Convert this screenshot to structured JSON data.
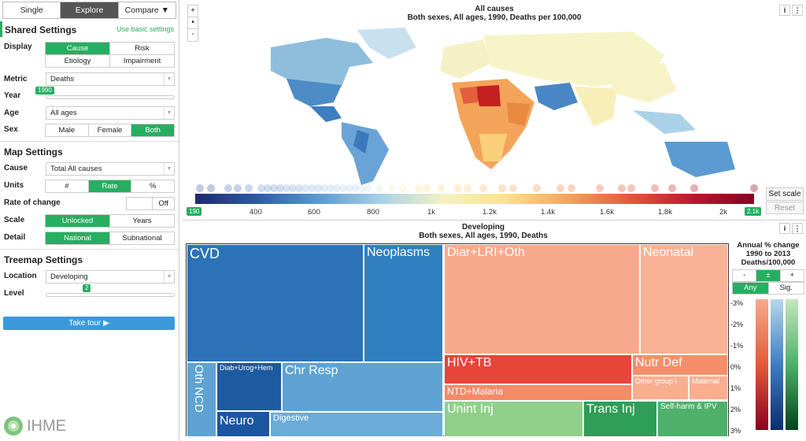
{
  "nav": {
    "single": "Single",
    "explore": "Explore",
    "compare": "Compare ▼"
  },
  "shared": {
    "title": "Shared Settings",
    "basic_link": "Use basic settings",
    "display_label": "Display",
    "display_opts": [
      "Cause",
      "Risk",
      "Etiology",
      "Impairment"
    ],
    "metric_label": "Metric",
    "metric_value": "Deaths",
    "year_label": "Year",
    "year_value": "1990",
    "age_label": "Age",
    "age_value": "All ages",
    "sex_label": "Sex",
    "sex_opts": [
      "Male",
      "Female",
      "Both"
    ]
  },
  "map_settings": {
    "title": "Map Settings",
    "cause_label": "Cause",
    "cause_value": "Total All causes",
    "units_label": "Units",
    "units_opts": [
      "#",
      "Rate",
      "%"
    ],
    "roc_label": "Rate of change",
    "roc_value": "Off",
    "scale_label": "Scale",
    "scale_opts": [
      "Unlocked",
      "Years"
    ],
    "detail_label": "Detail",
    "detail_opts": [
      "National",
      "Subnational"
    ]
  },
  "treemap_settings": {
    "title": "Treemap Settings",
    "location_label": "Location",
    "location_value": "Developing",
    "level_label": "Level",
    "level_value": "2"
  },
  "tour_label": "Take tour ▶",
  "logo_text": "IHME",
  "map": {
    "title": "All causes",
    "subtitle": "Both sexes, All ages, 1990, Deaths per 100,000",
    "zoom": [
      "+",
      "•",
      "-"
    ],
    "info": "i",
    "min_tag": "190",
    "max_tag": "2.1k",
    "ticks": [
      "400",
      "600",
      "800",
      "1k",
      "1.2k",
      "1.4k",
      "1.6k",
      "1.8k",
      "2k"
    ],
    "set_scale": "Set scale",
    "reset": "Reset"
  },
  "treemap": {
    "title": "Developing",
    "subtitle": "Both sexes, All ages, 1990, Deaths",
    "cells": [
      {
        "label": "CVD",
        "color": "#2b73b6"
      },
      {
        "label": "Neoplasms",
        "color": "#2f7fc1"
      },
      {
        "label": "Oth NCD",
        "color": "#5ea3d3"
      },
      {
        "label": "Diab+Urog+Hem",
        "color": "#1e5aa0"
      },
      {
        "label": "Chr Resp",
        "color": "#5ea3d3"
      },
      {
        "label": "Neuro",
        "color": "#1c56a0"
      },
      {
        "label": "Digestive",
        "color": "#6aabd9"
      },
      {
        "label": "Diar+LRI+Oth",
        "color": "#f9a98b"
      },
      {
        "label": "Neonatal",
        "color": "#f9b296"
      },
      {
        "label": "HIV+TB",
        "color": "#e8453a"
      },
      {
        "label": "Nutr Def",
        "color": "#f48f6a"
      },
      {
        "label": "Other group I",
        "color": "#f9ae90"
      },
      {
        "label": "Maternal",
        "color": "#f9ae90"
      },
      {
        "label": "NTD+Malaria",
        "color": "#f58a67"
      },
      {
        "label": "Unint Inj",
        "color": "#8fd08a"
      },
      {
        "label": "Trans Inj",
        "color": "#2e9e58"
      },
      {
        "label": "Self-harm & IPV",
        "color": "#4fb06a"
      }
    ]
  },
  "side": {
    "title": "Annual % change 1990 to 2013 Deaths/100,000",
    "pm": [
      "-",
      "±",
      "+"
    ],
    "sig": [
      "Any",
      "Sig."
    ],
    "ticks": [
      "-3%",
      "-2%",
      "-1%",
      "0%",
      "1%",
      "2%",
      "3%"
    ],
    "info": "i"
  }
}
